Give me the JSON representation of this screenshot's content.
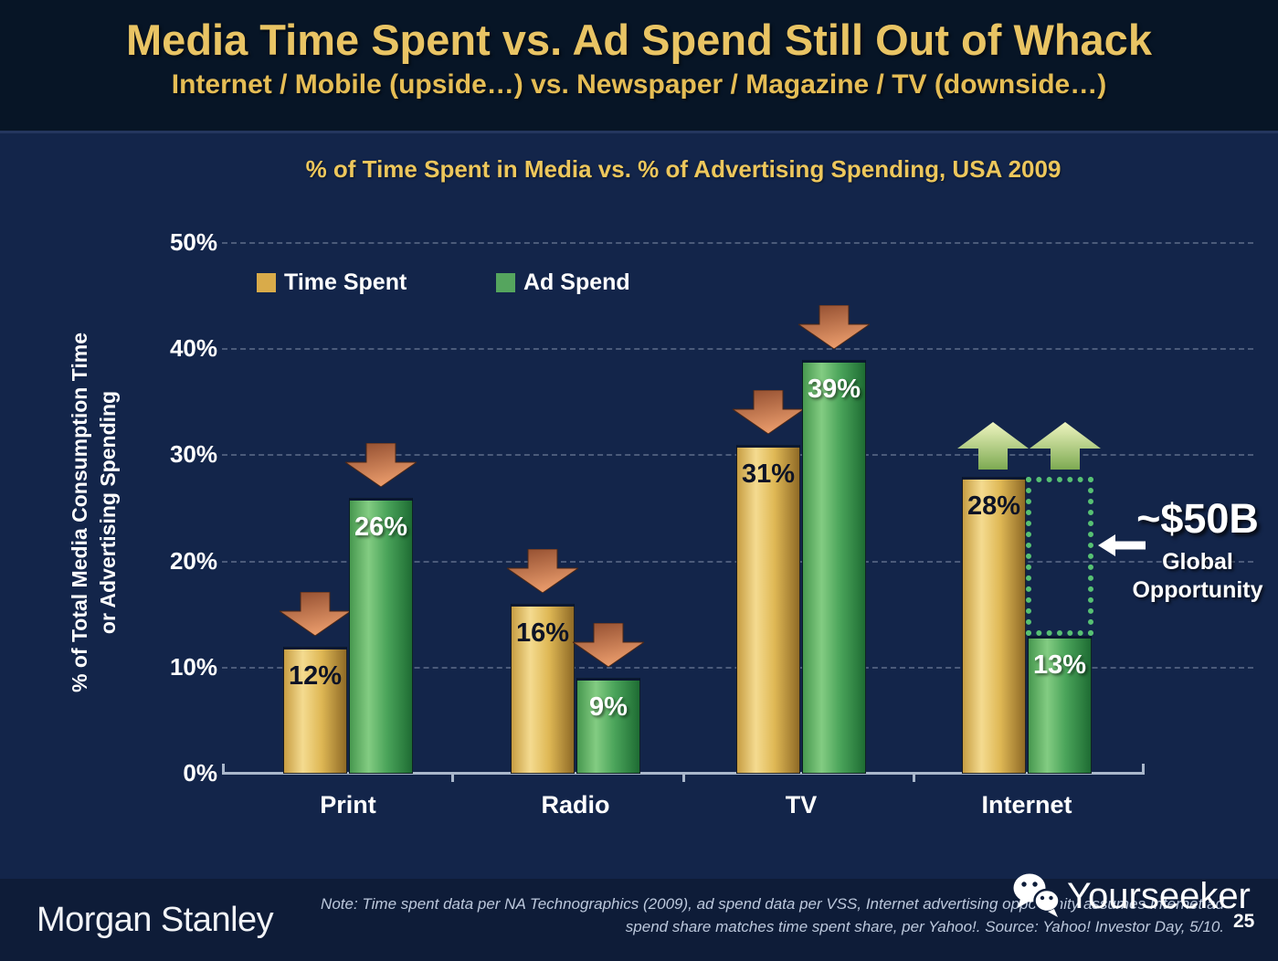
{
  "slide": {
    "title": "Media Time Spent vs. Ad Spend Still Out of Whack",
    "subtitle": "Internet / Mobile (upside…) vs. Newspaper / Magazine / TV (downside…)",
    "brand": "Morgan Stanley",
    "watermark": "Yourseeker",
    "note": "Note: Time spent data per NA Technographics (2009), ad spend data per VSS, Internet advertising opportunity assumes Internet ad\nspend share matches time spent share, per Yahoo!. Source: Yahoo! Investor Day, 5/10.",
    "page_number": "25"
  },
  "chart_data": {
    "type": "bar",
    "title": "% of Time Spent in Media vs. % of Advertising Spending, USA 2009",
    "categories": [
      "Print",
      "Radio",
      "TV",
      "Internet"
    ],
    "series": [
      {
        "name": "Time Spent",
        "color": "#d9ab4a",
        "values": [
          12,
          16,
          31,
          28
        ]
      },
      {
        "name": "Ad Spend",
        "color": "#55a55e",
        "values": [
          26,
          9,
          39,
          13
        ]
      }
    ],
    "value_suffix": "%",
    "ylabel": "% of Total Media Consumption Time\nor Advertising Spending",
    "ylim": [
      0,
      50
    ],
    "yticks": [
      "0%",
      "10%",
      "20%",
      "30%",
      "40%",
      "50%"
    ],
    "grid": "dotted-horizontal",
    "legend_position": "inside-top-left",
    "markers": [
      [
        "down",
        "down"
      ],
      [
        "down",
        "down"
      ],
      [
        "down",
        "down"
      ],
      [
        "up",
        "up"
      ]
    ],
    "marker_colors": {
      "down": "#cf7046",
      "up": "#b5d077"
    },
    "annotation": {
      "headline": "~$50B",
      "label": "Global\nOpportunity",
      "box": {
        "category": "Internet",
        "series": "Ad Spend",
        "from": 13,
        "to": 28,
        "style": "green-dotted"
      }
    }
  }
}
